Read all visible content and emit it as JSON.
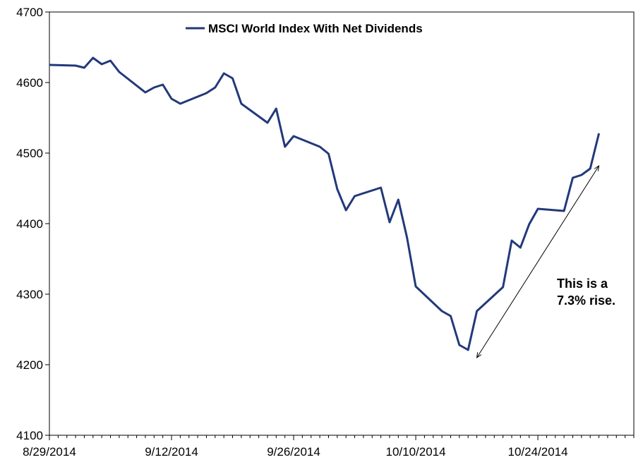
{
  "chart_data": {
    "type": "line",
    "title": "",
    "xlabel": "",
    "ylabel": "",
    "ylim": [
      4100,
      4700
    ],
    "yticks": [
      4100,
      4200,
      4300,
      4400,
      4500,
      4600,
      4700
    ],
    "xlim": [
      "2014-08-29",
      "2014-11-04"
    ],
    "xticks": [
      "2014-08-29",
      "2014-09-12",
      "2014-09-26",
      "2014-10-10",
      "2014-10-24"
    ],
    "xtick_labels": [
      "8/29/2014",
      "9/12/2014",
      "9/26/2014",
      "10/10/2014",
      "10/24/2014"
    ],
    "grid": false,
    "legend_position": "top-center",
    "series": [
      {
        "name": "MSCI World Index With Net Dividends",
        "color": "#22397a",
        "x": [
          "2014-08-29",
          "2014-09-01",
          "2014-09-02",
          "2014-09-03",
          "2014-09-04",
          "2014-09-05",
          "2014-09-06",
          "2014-09-09",
          "2014-09-10",
          "2014-09-11",
          "2014-09-12",
          "2014-09-13",
          "2014-09-16",
          "2014-09-17",
          "2014-09-18",
          "2014-09-19",
          "2014-09-20",
          "2014-09-23",
          "2014-09-24",
          "2014-09-25",
          "2014-09-26",
          "2014-09-29",
          "2014-09-30",
          "2014-10-01",
          "2014-10-02",
          "2014-10-03",
          "2014-10-06",
          "2014-10-07",
          "2014-10-08",
          "2014-10-09",
          "2014-10-10",
          "2014-10-13",
          "2014-10-14",
          "2014-10-15",
          "2014-10-16",
          "2014-10-17",
          "2014-10-20",
          "2014-10-21",
          "2014-10-22",
          "2014-10-23",
          "2014-10-24",
          "2014-10-27",
          "2014-10-28",
          "2014-10-29",
          "2014-10-30",
          "2014-10-31"
        ],
        "values": [
          4625,
          4624,
          4621,
          4635,
          4626,
          4631,
          4615,
          4586,
          4593,
          4597,
          4577,
          4570,
          4585,
          4593,
          4613,
          4606,
          4570,
          4543,
          4563,
          4509,
          4524,
          4509,
          4499,
          4449,
          4419,
          4439,
          4451,
          4402,
          4434,
          4380,
          4311,
          4276,
          4269,
          4228,
          4221,
          4276,
          4310,
          4376,
          4366,
          4399,
          4421,
          4418,
          4465,
          4469,
          4478,
          4528
        ]
      }
    ],
    "annotation": {
      "lines": [
        "This is a",
        "7.3% rise."
      ],
      "arrow_from": [
        "2014-10-17",
        4210
      ],
      "arrow_to": [
        "2014-10-31",
        4482
      ]
    }
  }
}
